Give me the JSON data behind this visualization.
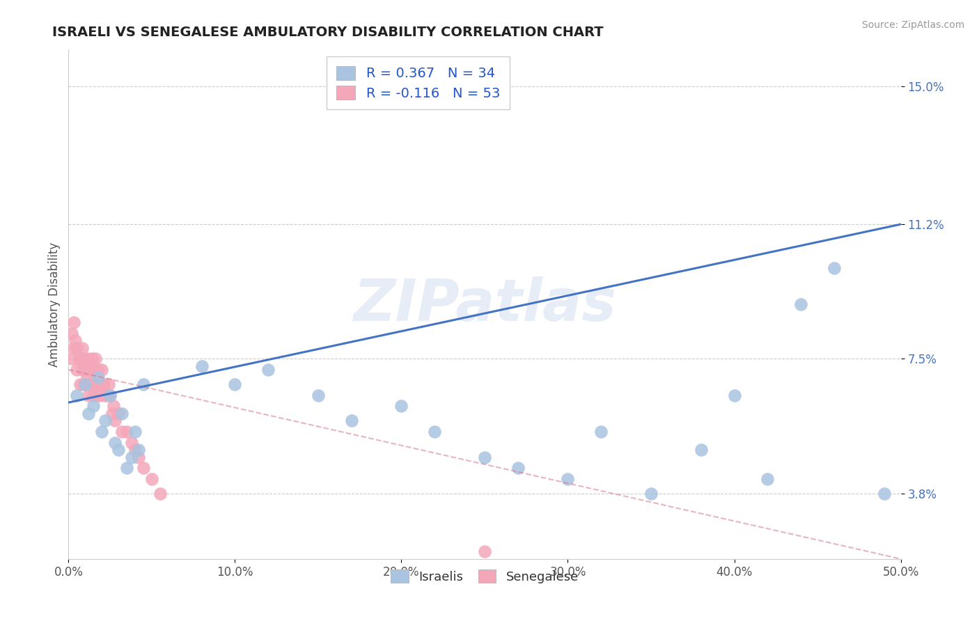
{
  "title": "ISRAELI VS SENEGALESE AMBULATORY DISABILITY CORRELATION CHART",
  "source": "Source: ZipAtlas.com",
  "ylabel": "Ambulatory Disability",
  "xlim": [
    0.0,
    0.5
  ],
  "ylim": [
    0.02,
    0.16
  ],
  "yticks": [
    0.038,
    0.075,
    0.112,
    0.15
  ],
  "ytick_labels": [
    "3.8%",
    "7.5%",
    "11.2%",
    "15.0%"
  ],
  "xticks": [
    0.0,
    0.1,
    0.2,
    0.3,
    0.4,
    0.5
  ],
  "xtick_labels": [
    "0.0%",
    "10.0%",
    "20.0%",
    "30.0%",
    "40.0%",
    "50.0%"
  ],
  "israelis_color": "#a8c4e0",
  "senegalese_color": "#f4a7b9",
  "trend_israeli_color": "#4472c4",
  "trend_senegalese_color": "#d4788a",
  "R_israeli": 0.367,
  "N_israeli": 34,
  "R_senegalese": -0.116,
  "N_senegalese": 53,
  "watermark": "ZIPatlas",
  "background_color": "#ffffff",
  "legend_label_israeli": "Israelis",
  "legend_label_senegalese": "Senegalese",
  "israelis_x": [
    0.005,
    0.01,
    0.012,
    0.015,
    0.018,
    0.02,
    0.022,
    0.025,
    0.028,
    0.03,
    0.032,
    0.035,
    0.038,
    0.04,
    0.042,
    0.045,
    0.08,
    0.1,
    0.12,
    0.15,
    0.17,
    0.2,
    0.22,
    0.25,
    0.27,
    0.3,
    0.32,
    0.35,
    0.38,
    0.4,
    0.42,
    0.44,
    0.46,
    0.49
  ],
  "israelis_y": [
    0.065,
    0.068,
    0.06,
    0.062,
    0.07,
    0.055,
    0.058,
    0.065,
    0.052,
    0.05,
    0.06,
    0.045,
    0.048,
    0.055,
    0.05,
    0.068,
    0.073,
    0.068,
    0.072,
    0.065,
    0.058,
    0.062,
    0.055,
    0.048,
    0.045,
    0.042,
    0.055,
    0.038,
    0.05,
    0.065,
    0.042,
    0.09,
    0.1,
    0.038
  ],
  "senegalese_x": [
    0.002,
    0.002,
    0.003,
    0.003,
    0.004,
    0.005,
    0.005,
    0.006,
    0.007,
    0.007,
    0.008,
    0.008,
    0.009,
    0.009,
    0.01,
    0.01,
    0.011,
    0.011,
    0.012,
    0.012,
    0.013,
    0.013,
    0.014,
    0.014,
    0.015,
    0.015,
    0.016,
    0.016,
    0.017,
    0.017,
    0.018,
    0.018,
    0.019,
    0.02,
    0.02,
    0.021,
    0.022,
    0.023,
    0.024,
    0.025,
    0.026,
    0.027,
    0.028,
    0.03,
    0.032,
    0.035,
    0.038,
    0.04,
    0.042,
    0.045,
    0.05,
    0.055,
    0.25
  ],
  "senegalese_y": [
    0.082,
    0.075,
    0.085,
    0.078,
    0.08,
    0.078,
    0.072,
    0.075,
    0.075,
    0.068,
    0.072,
    0.078,
    0.068,
    0.075,
    0.072,
    0.068,
    0.075,
    0.07,
    0.072,
    0.065,
    0.068,
    0.072,
    0.068,
    0.075,
    0.072,
    0.065,
    0.068,
    0.075,
    0.07,
    0.065,
    0.068,
    0.072,
    0.065,
    0.068,
    0.072,
    0.068,
    0.065,
    0.065,
    0.068,
    0.065,
    0.06,
    0.062,
    0.058,
    0.06,
    0.055,
    0.055,
    0.052,
    0.05,
    0.048,
    0.045,
    0.042,
    0.038,
    0.022
  ],
  "israeli_line_x0": 0.0,
  "israeli_line_y0": 0.063,
  "israeli_line_x1": 0.5,
  "israeli_line_y1": 0.112,
  "senegalese_line_x0": 0.0,
  "senegalese_line_y0": 0.072,
  "senegalese_line_x1": 0.5,
  "senegalese_line_y1": 0.02
}
